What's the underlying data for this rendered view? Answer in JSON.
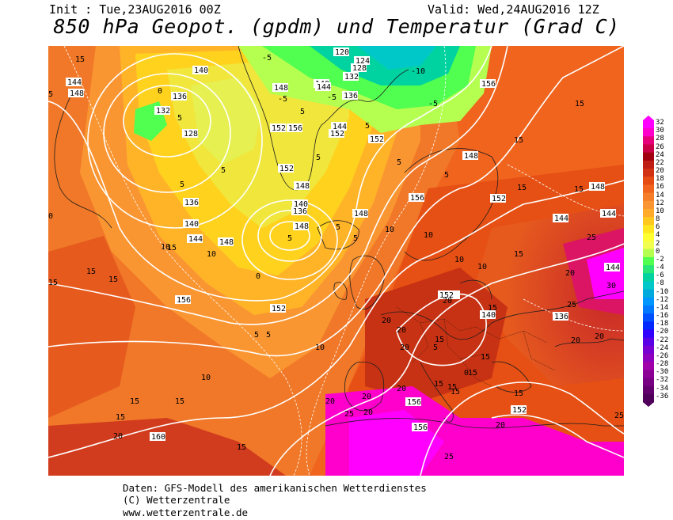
{
  "header": {
    "init": "Init : Tue,23AUG2016 00Z",
    "valid": "Valid: Wed,24AUG2016 12Z",
    "title": "850 hPa Geopot. (gpdm) und Temperatur (Grad C)"
  },
  "credits": {
    "line1": "Daten: GFS-Modell des amerikanischen Wetterdienstes",
    "line2": "(C) Wetterzentrale",
    "line3": "www.wetterzentrale.de"
  },
  "color_scale": {
    "labels": [
      "32",
      "30",
      "28",
      "26",
      "24",
      "22",
      "20",
      "18",
      "16",
      "14",
      "12",
      "10",
      "8",
      "6",
      "4",
      "2",
      "0",
      "-2",
      "-4",
      "-6",
      "-8",
      "-10",
      "-12",
      "-14",
      "-16",
      "-18",
      "-20",
      "-22",
      "-24",
      "-26",
      "-28",
      "-30",
      "-32",
      "-34",
      "-36"
    ],
    "colors": [
      "#ff00ff",
      "#ff00cc",
      "#e6007a",
      "#c80046",
      "#a00010",
      "#be1e14",
      "#d23214",
      "#e64b14",
      "#f0641e",
      "#f57d28",
      "#fa9632",
      "#ffaa28",
      "#ffc81e",
      "#ffe61e",
      "#ffff32",
      "#f0ff50",
      "#b4ff50",
      "#50ff50",
      "#28e678",
      "#00d2a0",
      "#00c8c8",
      "#00aadc",
      "#0096ff",
      "#0078ff",
      "#0050ff",
      "#0028ff",
      "#3200ff",
      "#5a00e6",
      "#7800d2",
      "#8c00be",
      "#a000aa",
      "#8c0096",
      "#780082",
      "#64006e",
      "#50005a"
    ]
  },
  "map_labels": {
    "geopotential": [
      "148",
      "144",
      "140",
      "136",
      "132",
      "128",
      "136",
      "140",
      "144",
      "148",
      "152",
      "156",
      "160",
      "120",
      "124",
      "128",
      "132",
      "136",
      "140",
      "144",
      "148",
      "152",
      "156",
      "152",
      "148",
      "144",
      "140",
      "136",
      "148",
      "152",
      "156",
      "152",
      "160",
      "156",
      "152",
      "148",
      "144",
      "148",
      "156",
      "152",
      "144",
      "148",
      "152",
      "152",
      "148",
      "144",
      "136",
      "140",
      "152",
      "156",
      "156",
      "152",
      "148",
      "144"
    ],
    "temperature": [
      "15",
      "15",
      "5",
      "0",
      "-5",
      "0",
      "5",
      "10",
      "15",
      "20",
      "15",
      "10",
      "5",
      "0",
      "-5",
      "-10",
      "-5",
      "0",
      "5",
      "10",
      "15",
      "20",
      "25",
      "30",
      "25",
      "20",
      "15",
      "10",
      "15",
      "20",
      "25",
      "20",
      "15",
      "10",
      "5",
      "15",
      "20",
      "30",
      "25",
      "20",
      "15",
      "10",
      "5"
    ]
  }
}
